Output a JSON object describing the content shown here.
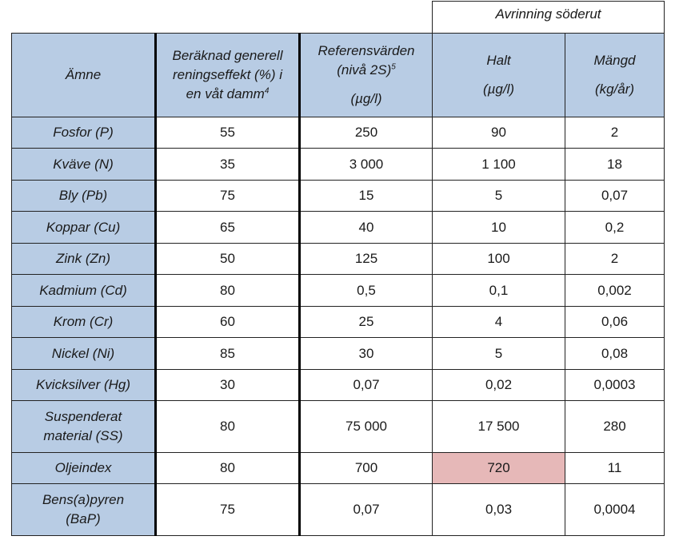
{
  "supra_header": "Avrinning söderut",
  "headers": {
    "amne": "Ämne",
    "effekt_l1": "Beräknad generell",
    "effekt_l2": "reningseffekt (%) i",
    "effekt_l3": "en våt damm",
    "effekt_sup": "4",
    "ref_l1": "Referensvärden",
    "ref_l2": "(nivå 2S)",
    "ref_sup": "5",
    "ref_unit": "(µg/l)",
    "halt": "Halt",
    "halt_unit": "(µg/l)",
    "mangd": "Mängd",
    "mangd_unit": "(kg/år)"
  },
  "rows": [
    {
      "name": "Fosfor (P)",
      "effekt": "55",
      "ref": "250",
      "halt": "90",
      "mangd": "2"
    },
    {
      "name": "Kväve (N)",
      "effekt": "35",
      "ref": "3 000",
      "halt": "1 100",
      "mangd": "18"
    },
    {
      "name": "Bly (Pb)",
      "effekt": "75",
      "ref": "15",
      "halt": "5",
      "mangd": "0,07"
    },
    {
      "name": "Koppar (Cu)",
      "effekt": "65",
      "ref": "40",
      "halt": "10",
      "mangd": "0,2"
    },
    {
      "name": "Zink (Zn)",
      "effekt": "50",
      "ref": "125",
      "halt": "100",
      "mangd": "2"
    },
    {
      "name": "Kadmium (Cd)",
      "effekt": "80",
      "ref": "0,5",
      "halt": "0,1",
      "mangd": "0,002"
    },
    {
      "name": "Krom (Cr)",
      "effekt": "60",
      "ref": "25",
      "halt": "4",
      "mangd": "0,06"
    },
    {
      "name": "Nickel (Ni)",
      "effekt": "85",
      "ref": "30",
      "halt": "5",
      "mangd": "0,08"
    },
    {
      "name": "Kvicksilver (Hg)",
      "effekt": "30",
      "ref": "0,07",
      "halt": "0,02",
      "mangd": "0,0003"
    },
    {
      "name_l1": "Suspenderat",
      "name_l2": "material (SS)",
      "effekt": "80",
      "ref": "75 000",
      "halt": "17 500",
      "mangd": "280"
    },
    {
      "name": "Oljeindex",
      "effekt": "80",
      "ref": "700",
      "halt": "720",
      "mangd": "11",
      "halt_highlight_color": "#e6b8b8"
    },
    {
      "name_l1": "Bens(a)pyren",
      "name_l2": "(BaP)",
      "effekt": "75",
      "ref": "0,07",
      "halt": "0,03",
      "mangd": "0,0004"
    }
  ]
}
